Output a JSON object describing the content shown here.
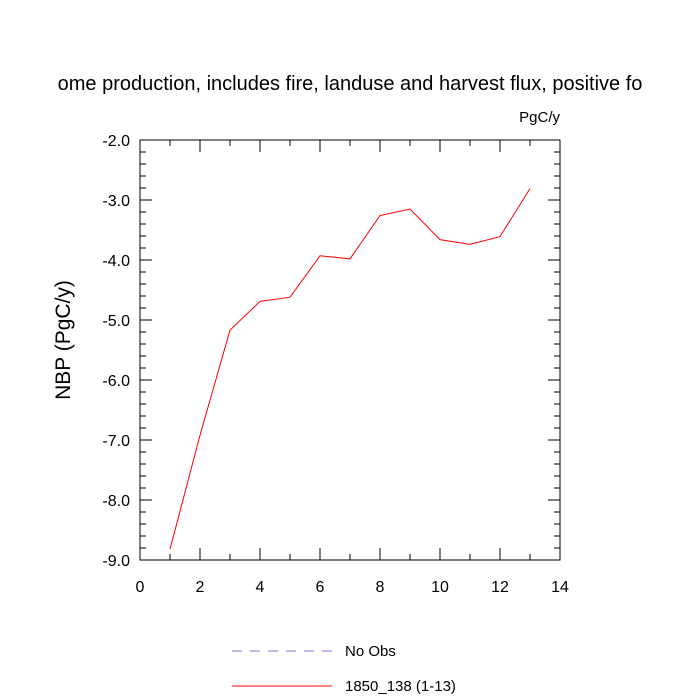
{
  "chart_data": {
    "type": "line",
    "title": "ome production, includes fire, landuse and harvest flux, positive fo",
    "units": "PgC/y",
    "ylabel": "NBP  (PgC/y)",
    "xlabel": "",
    "xlim": [
      0,
      14
    ],
    "ylim": [
      -9.0,
      -2.0
    ],
    "x_ticks": [
      0,
      2,
      4,
      6,
      8,
      10,
      12,
      14
    ],
    "y_ticks": [
      -2.0,
      -3.0,
      -4.0,
      -5.0,
      -6.0,
      -7.0,
      -8.0,
      -9.0
    ],
    "x_tick_labels": [
      "0",
      "2",
      "4",
      "6",
      "8",
      "10",
      "12",
      "14"
    ],
    "y_tick_labels": [
      "-2.0",
      "-3.0",
      "-4.0",
      "-5.0",
      "-6.0",
      "-7.0",
      "-8.0",
      "-9.0"
    ],
    "grid": false,
    "legend_position": "bottom",
    "series": [
      {
        "name": "No Obs",
        "color": "#7b7bd8",
        "style": "dashed",
        "x": [],
        "y": []
      },
      {
        "name": "1850_138 (1-13)",
        "color": "#ff0000",
        "style": "solid",
        "x": [
          1,
          2,
          3,
          4,
          5,
          6,
          7,
          8,
          9,
          10,
          11,
          12,
          13
        ],
        "y": [
          -8.82,
          -6.92,
          -5.17,
          -4.69,
          -4.62,
          -3.93,
          -3.98,
          -3.26,
          -3.15,
          -3.66,
          -3.74,
          -3.61,
          -2.81
        ]
      }
    ]
  }
}
